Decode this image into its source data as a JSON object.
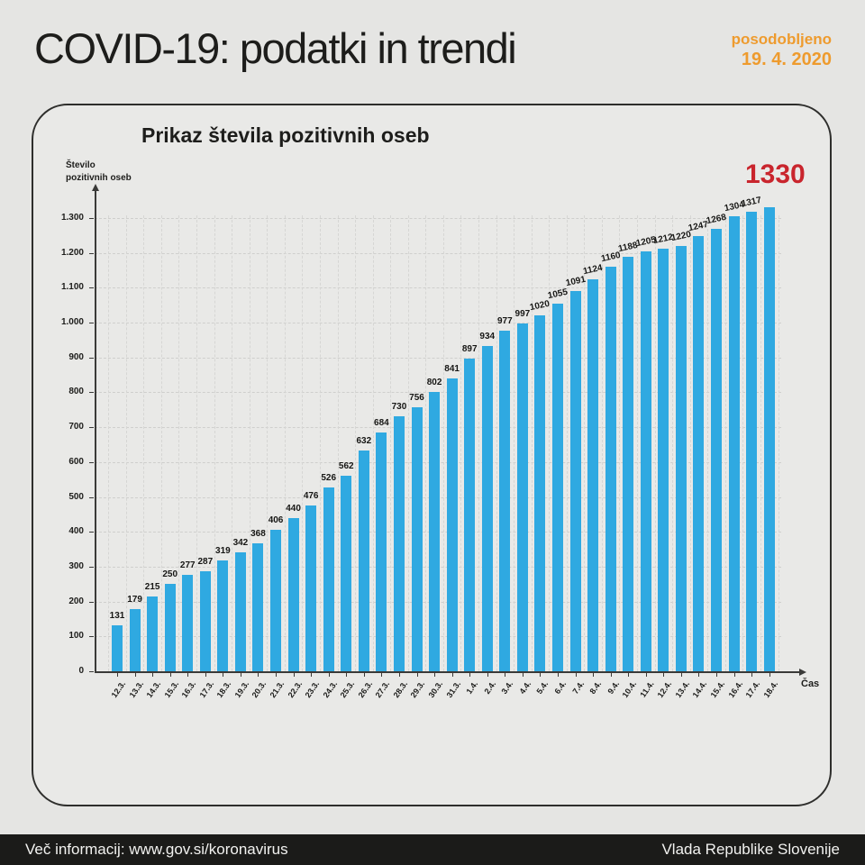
{
  "header": {
    "title": "COVID-19: podatki in trendi",
    "updated_label": "posodobljeno",
    "updated_date": "19. 4. 2020"
  },
  "chart": {
    "title": "Prikaz števila pozitivnih oseb",
    "y_axis_label_line1": "Število",
    "y_axis_label_line2": "pozitivnih oseb",
    "x_axis_label": "Čas",
    "highlight_value": "1330"
  },
  "chart_data": {
    "type": "bar",
    "title": "Prikaz števila pozitivnih oseb",
    "xlabel": "Čas",
    "ylabel": "Število pozitivnih oseb",
    "categories": [
      "12.3.",
      "13.3.",
      "14.3.",
      "15.3.",
      "16.3.",
      "17.3.",
      "18.3.",
      "19.3.",
      "20.3.",
      "21.3.",
      "22.3.",
      "23.3.",
      "24.3.",
      "25.3.",
      "26.3.",
      "27.3.",
      "28.3.",
      "29.3.",
      "30.3.",
      "31.3.",
      "1.4.",
      "2.4.",
      "3.4.",
      "4.4.",
      "5.4.",
      "6.4.",
      "7.4.",
      "8.4.",
      "9.4.",
      "10.4.",
      "11.4.",
      "12.4.",
      "13.4.",
      "14.4.",
      "15.4.",
      "16.4.",
      "17.4.",
      "18.4."
    ],
    "values": [
      131,
      179,
      215,
      250,
      277,
      287,
      319,
      342,
      368,
      406,
      440,
      476,
      526,
      562,
      632,
      684,
      730,
      756,
      802,
      841,
      897,
      934,
      977,
      997,
      1020,
      1055,
      1091,
      1124,
      1160,
      1188,
      1205,
      1212,
      1220,
      1247,
      1268,
      1304,
      1317,
      1330
    ],
    "y_ticks": [
      "0",
      "100",
      "200",
      "300",
      "400",
      "500",
      "600",
      "700",
      "800",
      "900",
      "1.000",
      "1.100",
      "1.200",
      "1.300"
    ],
    "y_tick_step": 100,
    "ylim": [
      0,
      1400
    ],
    "grid": "dashed",
    "legend": "none",
    "bar_color": "#2fa9e1",
    "highlight": {
      "value": 1330,
      "label": "1330",
      "color": "#c9252d"
    }
  },
  "colors": {
    "background": "#e5e5e3",
    "card_background": "#e9e9e7",
    "card_border": "#2e2e2c",
    "bar_blue": "#2fa9e1",
    "highlight_red": "#c9252d",
    "accent_orange": "#ee9b2e",
    "footer_background": "#1b1b19",
    "text_dark": "#1d1d1b"
  },
  "footer": {
    "left": "Več informacij: www.gov.si/koronavirus",
    "right": "Vlada Republike Slovenije"
  }
}
